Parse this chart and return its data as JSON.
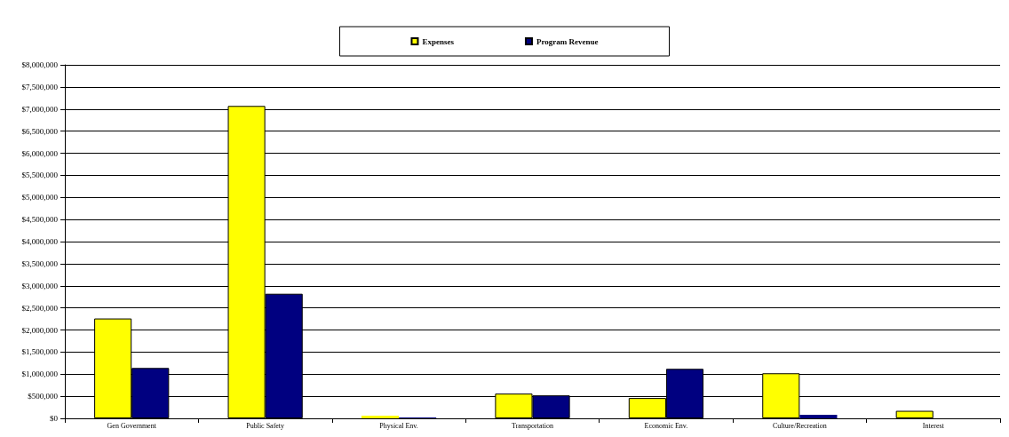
{
  "chart_data": {
    "type": "bar",
    "categories": [
      "Gen Government",
      "Public Safety",
      "Physical Env.",
      "Transportation",
      "Economic Env.",
      "Culture/Recreation",
      "Interest"
    ],
    "series": [
      {
        "name": "Expenses",
        "color": "#ffff00",
        "values": [
          2260000,
          7070000,
          60000,
          560000,
          460000,
          1020000,
          170000
        ]
      },
      {
        "name": "Program Revenue",
        "color": "#000080",
        "values": [
          1140000,
          2820000,
          20000,
          520000,
          1120000,
          80000,
          null
        ]
      }
    ],
    "ylim": [
      0,
      8000000
    ],
    "yticks": [
      {
        "value": 0,
        "label": "$0"
      },
      {
        "value": 500000,
        "label": "$500,000"
      },
      {
        "value": 1000000,
        "label": "$1,000,000"
      },
      {
        "value": 1500000,
        "label": "$1,500,000"
      },
      {
        "value": 2000000,
        "label": "$2,000,000"
      },
      {
        "value": 2500000,
        "label": "$2,500,000"
      },
      {
        "value": 3000000,
        "label": "$3,000,000"
      },
      {
        "value": 3500000,
        "label": "$3,500,000"
      },
      {
        "value": 4000000,
        "label": "$4,000,000"
      },
      {
        "value": 4500000,
        "label": "$4,500,000"
      },
      {
        "value": 5000000,
        "label": "$5,000,000"
      },
      {
        "value": 5500000,
        "label": "$5,500,000"
      },
      {
        "value": 6000000,
        "label": "$6,000,000"
      },
      {
        "value": 6500000,
        "label": "$6,500,000"
      },
      {
        "value": 7000000,
        "label": "$7,000,000"
      },
      {
        "value": 7500000,
        "label": "$7,500,000"
      },
      {
        "value": 8000000,
        "label": "$8,000,000"
      }
    ],
    "grid": "y",
    "legend": "top"
  }
}
